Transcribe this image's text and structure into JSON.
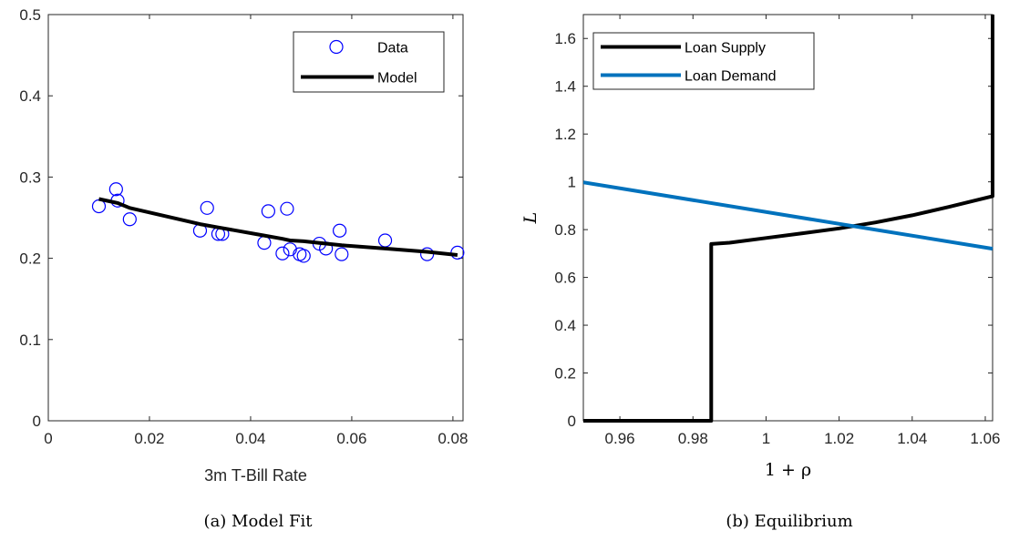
{
  "chart_data": [
    {
      "type": "scatter",
      "xlabel": "3m T-Bill Rate",
      "ylabel": "",
      "xlim": [
        0,
        0.082
      ],
      "ylim": [
        0,
        0.5
      ],
      "xticks": [
        "0",
        "0.02",
        "0.04",
        "0.06",
        "0.08"
      ],
      "yticks": [
        "0",
        "0.1",
        "0.2",
        "0.3",
        "0.4",
        "0.5"
      ],
      "legend_position": "top-right",
      "caption": "(a)  Model Fit",
      "series": [
        {
          "name": "Data",
          "mark": "circle",
          "color": "#0000ff",
          "points": [
            [
              0.01,
              0.264
            ],
            [
              0.0134,
              0.285
            ],
            [
              0.0137,
              0.271
            ],
            [
              0.0161,
              0.248
            ],
            [
              0.03,
              0.234
            ],
            [
              0.0314,
              0.262
            ],
            [
              0.0336,
              0.23
            ],
            [
              0.0344,
              0.23
            ],
            [
              0.0427,
              0.219
            ],
            [
              0.0435,
              0.258
            ],
            [
              0.0463,
              0.206
            ],
            [
              0.0472,
              0.261
            ],
            [
              0.0478,
              0.211
            ],
            [
              0.0497,
              0.205
            ],
            [
              0.0505,
              0.203
            ],
            [
              0.0536,
              0.218
            ],
            [
              0.0549,
              0.212
            ],
            [
              0.0576,
              0.234
            ],
            [
              0.058,
              0.205
            ],
            [
              0.0666,
              0.222
            ],
            [
              0.0749,
              0.205
            ],
            [
              0.0809,
              0.207
            ]
          ]
        },
        {
          "name": "Model",
          "mark": "line",
          "color": "#000000",
          "points": [
            [
              0.01,
              0.273
            ],
            [
              0.0137,
              0.268
            ],
            [
              0.0161,
              0.262
            ],
            [
              0.03,
              0.242
            ],
            [
              0.0336,
              0.238
            ],
            [
              0.0427,
              0.228
            ],
            [
              0.0463,
              0.224
            ],
            [
              0.0478,
              0.222
            ],
            [
              0.0505,
              0.221
            ],
            [
              0.0536,
              0.219
            ],
            [
              0.058,
              0.216
            ],
            [
              0.0666,
              0.212
            ],
            [
              0.0749,
              0.208
            ],
            [
              0.0809,
              0.204
            ]
          ]
        }
      ]
    },
    {
      "type": "line",
      "xlabel": "1 + ρ",
      "ylabel": "L",
      "xlim": [
        0.95,
        1.062
      ],
      "ylim": [
        0,
        1.7
      ],
      "xticks": [
        "0.96",
        "0.98",
        "1",
        "1.02",
        "1.04",
        "1.06"
      ],
      "yticks": [
        "0",
        "0.2",
        "0.4",
        "0.6",
        "0.8",
        "1",
        "1.2",
        "1.4",
        "1.6"
      ],
      "legend_position": "top-left",
      "caption": "(b)  Equilibrium",
      "series": [
        {
          "name": "Loan Supply",
          "mark": "line",
          "color": "#000000",
          "points": [
            [
              0.95,
              0
            ],
            [
              0.985,
              0
            ],
            [
              0.985,
              0.74
            ],
            [
              0.99,
              0.745
            ],
            [
              1.0,
              0.765
            ],
            [
              1.01,
              0.785
            ],
            [
              1.02,
              0.805
            ],
            [
              1.03,
              0.83
            ],
            [
              1.04,
              0.86
            ],
            [
              1.05,
              0.895
            ],
            [
              1.062,
              0.94
            ],
            [
              1.062,
              1.7
            ]
          ]
        },
        {
          "name": "Loan Demand",
          "mark": "line",
          "color": "#0072bd",
          "points": [
            [
              0.95,
              0.998
            ],
            [
              1.062,
              0.72
            ]
          ]
        }
      ]
    }
  ]
}
